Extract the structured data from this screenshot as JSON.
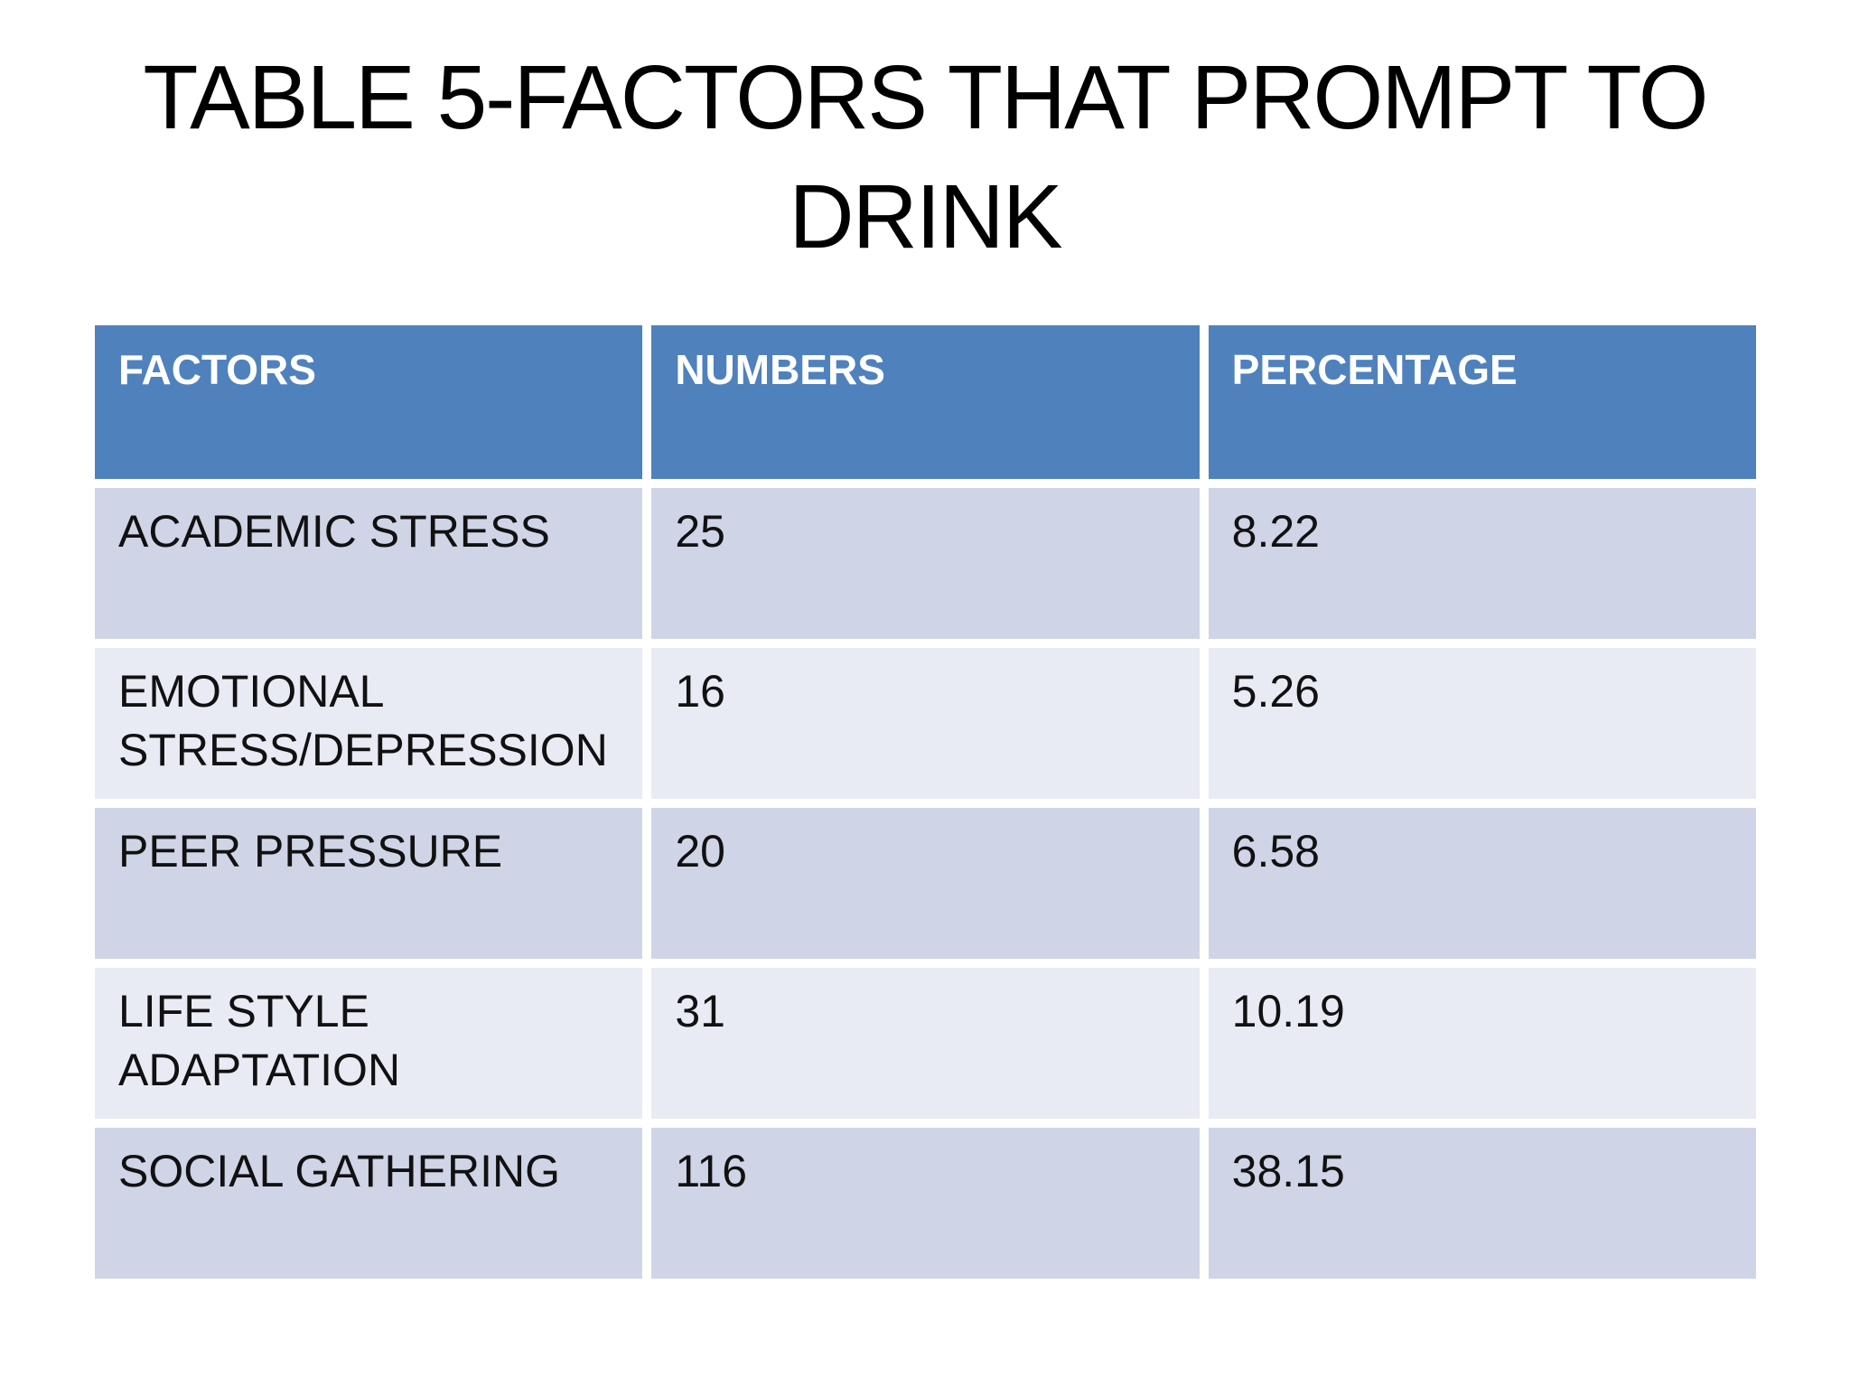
{
  "slide": {
    "title_line1": "TABLE 5-FACTORS THAT PROMPT TO",
    "title_line2": "DRINK"
  },
  "table": {
    "columns": [
      "FACTORS",
      "NUMBERS",
      "PERCENTAGE"
    ],
    "rows": [
      {
        "factor": "ACADEMIC STRESS",
        "number": "25",
        "percentage": "8.22"
      },
      {
        "factor": "EMOTIONAL STRESS/DEPRESSION",
        "number": "16",
        "percentage": "5.26"
      },
      {
        "factor": "PEER PRESSURE",
        "number": "20",
        "percentage": "6.58"
      },
      {
        "factor": "LIFE STYLE ADAPTATION",
        "number": "31",
        "percentage": "10.19"
      },
      {
        "factor": "SOCIAL GATHERING",
        "number": "116",
        "percentage": "38.15"
      }
    ],
    "colors": {
      "slide_bg": "#FFFFFF",
      "title_text": "#000000",
      "header_bg": "#4F81BD",
      "header_text": "#FFFFFF",
      "row_odd_bg": "#CFD5E6",
      "row_even_bg": "#E9EBF4",
      "body_text": "#111111",
      "border": "#FFFFFF"
    }
  }
}
